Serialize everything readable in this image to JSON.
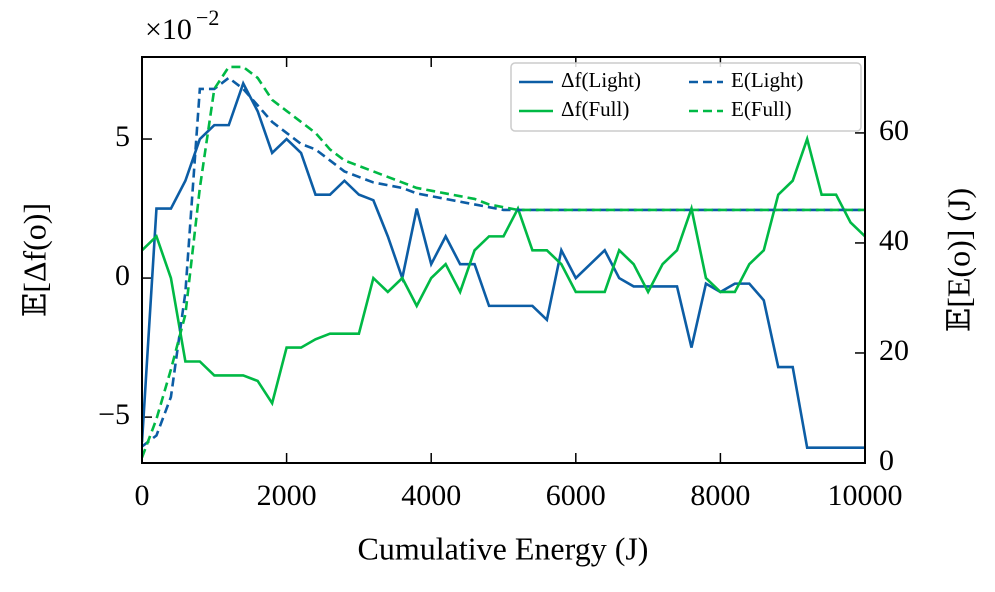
{
  "chart_data": {
    "type": "line",
    "y_offset": {
      "base": "×10",
      "exponent": "−2"
    },
    "xlabel": "Cumulative Energy (J)",
    "ylabel": "𝔼[Δf(o)]",
    "y2label": "𝔼[E(o)] (J)",
    "x": [
      0,
      200,
      400,
      600,
      800,
      1000,
      1200,
      1400,
      1600,
      1800,
      2000,
      2200,
      2400,
      2600,
      2800,
      3000,
      3200,
      3400,
      3600,
      3800,
      4000,
      4200,
      4400,
      4600,
      4800,
      5000,
      5200,
      5400,
      5600,
      5800,
      6000,
      6200,
      6400,
      6600,
      6800,
      7000,
      7200,
      7400,
      7600,
      7800,
      8000,
      8200,
      8400,
      8600,
      8800,
      9000,
      9200,
      9400,
      9600,
      9800,
      10000
    ],
    "series": [
      {
        "name": "Δf(Light)",
        "color": "#0c5da5",
        "linestyle": "solid",
        "values": [
          -5.9,
          2.5,
          2.5,
          3.5,
          5,
          5.5,
          5.5,
          7,
          6,
          4.5,
          5,
          4.5,
          3,
          3,
          3.5,
          3,
          2.8,
          1.5,
          0,
          2.5,
          0.5,
          1.5,
          0.5,
          0.5,
          -1,
          -1,
          -1,
          -1,
          -1.5,
          1,
          0,
          0.5,
          1,
          0,
          -0.3,
          -0.3,
          -0.3,
          -0.3,
          -2.5,
          -0.2,
          -0.5,
          -0.2,
          -0.2,
          -0.8,
          -3.2,
          -3.2,
          -6.1,
          -6.1,
          -6.1,
          -6.1,
          -6.1
        ]
      },
      {
        "name": "Δf(Full)",
        "color": "#00b945",
        "linestyle": "solid",
        "values": [
          1,
          1.5,
          0,
          -3,
          -3,
          -3.5,
          -3.5,
          -3.5,
          -3.7,
          -4.5,
          -2.5,
          -2.5,
          -2.2,
          -2,
          -2,
          -2,
          0,
          -0.5,
          0,
          -1,
          0,
          0.5,
          -0.5,
          1,
          1.5,
          1.5,
          2.5,
          1,
          1,
          0.5,
          -0.5,
          -0.5,
          -0.5,
          1,
          0.5,
          -0.5,
          0.5,
          1,
          2.5,
          0,
          -0.5,
          -0.5,
          0.5,
          1,
          3,
          3.5,
          5,
          3,
          3,
          2,
          1.5
        ]
      },
      {
        "name": "E(Light)",
        "color": "#0c5da5",
        "linestyle": "dashed",
        "axis": "y2",
        "values": [
          3,
          5,
          12,
          31,
          68,
          68,
          70,
          68,
          65,
          62,
          60,
          58,
          57,
          55,
          53,
          52,
          51,
          50.5,
          50,
          49,
          48.5,
          48,
          47.5,
          47,
          46.5,
          46,
          46,
          46,
          46,
          46,
          46,
          46,
          46,
          46,
          46,
          46,
          46,
          46,
          46,
          46,
          46,
          46,
          46,
          46,
          46,
          46,
          46,
          46,
          46,
          46,
          46
        ]
      },
      {
        "name": "E(Full)",
        "color": "#00b945",
        "linestyle": "dashed",
        "axis": "y2",
        "values": [
          1,
          8,
          17,
          27,
          50,
          68,
          72,
          72,
          70,
          66,
          64,
          62,
          60,
          57,
          55,
          54,
          53,
          52,
          51,
          50,
          49.5,
          49,
          48.5,
          48,
          47,
          46.5,
          46,
          46,
          46,
          46,
          46,
          46,
          46,
          46,
          46,
          46,
          46,
          46,
          46,
          46,
          46,
          46,
          46,
          46,
          46,
          46,
          46,
          46,
          46,
          46,
          46
        ]
      }
    ],
    "xlim": [
      0,
      10000
    ],
    "xticks": [
      0,
      2000,
      4000,
      6000,
      8000,
      10000
    ],
    "ylim": [
      -6.65,
      7.95
    ],
    "yticks": [
      {
        "value": -5,
        "label": "−5"
      },
      0,
      5
    ],
    "y2lim": [
      0,
      73.8
    ],
    "y2ticks": [
      0,
      20,
      40,
      60
    ],
    "legend": "upper right",
    "grid": false
  }
}
